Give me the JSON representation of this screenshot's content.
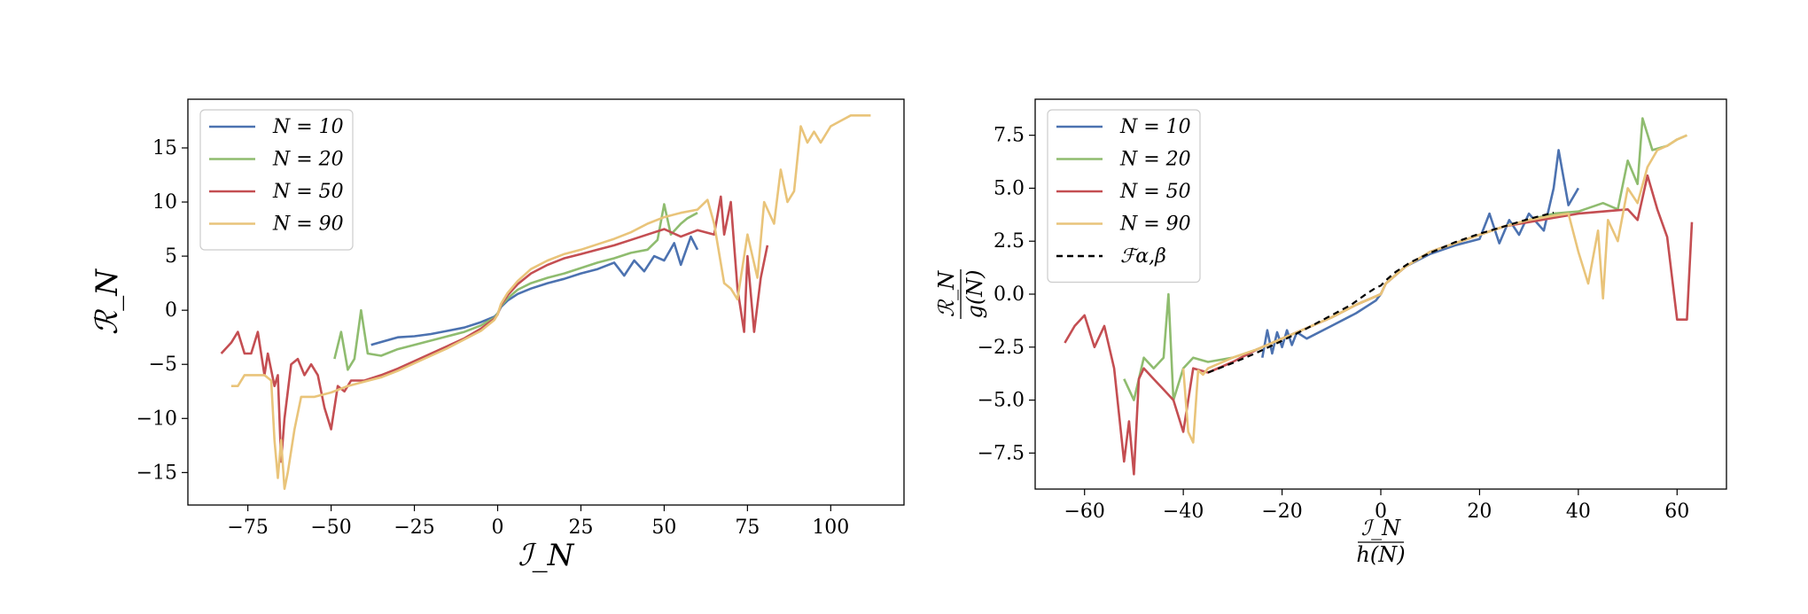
{
  "chart_data": [
    {
      "type": "line",
      "xlabel": "ℐ_N",
      "ylabel": "ℛ_N",
      "xlim": [
        -93,
        122
      ],
      "ylim": [
        -18,
        19.5
      ],
      "xticks": [
        -75,
        -50,
        -25,
        0,
        25,
        50,
        75,
        100
      ],
      "xtick_labels": [
        "−75",
        "−50",
        "−25",
        "0",
        "25",
        "50",
        "75",
        "100"
      ],
      "yticks": [
        -15,
        -10,
        -5,
        0,
        5,
        10,
        15
      ],
      "ytick_labels": [
        "−15",
        "−10",
        "−5",
        "0",
        "5",
        "10",
        "15"
      ],
      "legend_position": "upper-left",
      "series": [
        {
          "name": "N = 10",
          "color": "#4c72b0",
          "x": [
            -38,
            -30,
            -25,
            -20,
            -15,
            -10,
            -5,
            -1,
            0,
            1,
            3,
            6,
            10,
            15,
            20,
            25,
            30,
            35,
            38,
            41,
            44,
            47,
            50,
            53,
            55,
            58,
            60
          ],
          "y": [
            -3.2,
            -2.5,
            -2.4,
            -2.2,
            -1.9,
            -1.6,
            -1.1,
            -0.6,
            -0.3,
            0.3,
            0.9,
            1.5,
            2.0,
            2.5,
            2.9,
            3.4,
            3.8,
            4.4,
            3.2,
            4.6,
            3.6,
            5.0,
            4.6,
            6.2,
            4.2,
            6.8,
            5.6
          ]
        },
        {
          "name": "N = 20",
          "color": "#8fbc6f",
          "x": [
            -49,
            -47,
            -45,
            -43,
            -41,
            -39,
            -35,
            -30,
            -25,
            -20,
            -15,
            -10,
            -5,
            -1,
            0,
            1,
            3,
            6,
            10,
            15,
            20,
            25,
            30,
            35,
            40,
            45,
            48,
            50,
            52,
            55,
            57,
            60
          ],
          "y": [
            -4.5,
            -2,
            -5.5,
            -4.5,
            0,
            -4,
            -4.2,
            -3.6,
            -3.2,
            -2.8,
            -2.4,
            -2.0,
            -1.4,
            -0.7,
            -0.3,
            0.4,
            1.1,
            1.9,
            2.5,
            3.0,
            3.4,
            3.9,
            4.4,
            4.8,
            5.3,
            5.6,
            6.5,
            9.8,
            7.0,
            8.0,
            8.5,
            9.0
          ]
        },
        {
          "name": "N = 50",
          "color": "#c44e52",
          "x": [
            -83,
            -80,
            -78,
            -76,
            -74,
            -72,
            -70,
            -69,
            -67,
            -66,
            -65,
            -64,
            -62,
            -60,
            -58,
            -56,
            -54,
            -52,
            -50,
            -48,
            -46,
            -44,
            -40,
            -35,
            -30,
            -25,
            -20,
            -15,
            -10,
            -5,
            -1,
            0,
            1,
            3,
            6,
            10,
            15,
            20,
            25,
            30,
            35,
            40,
            45,
            50,
            55,
            60,
            65,
            67,
            68,
            70,
            72,
            74,
            75,
            77,
            79,
            81
          ],
          "y": [
            -4,
            -3,
            -2,
            -4,
            -4,
            -2,
            -6,
            -4,
            -7,
            -6,
            -14,
            -10,
            -5,
            -4.5,
            -6,
            -5,
            -6,
            -9,
            -11,
            -7,
            -7.5,
            -6.5,
            -6.5,
            -6,
            -5.4,
            -4.7,
            -4.0,
            -3.3,
            -2.6,
            -1.7,
            -0.8,
            -0.4,
            0.5,
            1.4,
            2.4,
            3.4,
            4.2,
            4.8,
            5.2,
            5.6,
            6.0,
            6.5,
            7.0,
            7.5,
            6.8,
            7.4,
            7.0,
            10.5,
            7.0,
            10.0,
            2.0,
            -2.0,
            5.0,
            -2.0,
            3.0,
            6.0
          ]
        },
        {
          "name": "N = 90",
          "color": "#e9c47a",
          "x": [
            -80,
            -78,
            -76,
            -74,
            -72,
            -70,
            -68,
            -67,
            -66,
            -65,
            -64,
            -63,
            -61,
            -59,
            -55,
            -50,
            -45,
            -40,
            -35,
            -30,
            -25,
            -20,
            -15,
            -10,
            -5,
            -1,
            0,
            1,
            3,
            6,
            10,
            15,
            20,
            25,
            30,
            35,
            40,
            45,
            50,
            55,
            60,
            63,
            65,
            68,
            70,
            72,
            75,
            78,
            80,
            83,
            85,
            87,
            89,
            91,
            93,
            95,
            97,
            100,
            103,
            106,
            109,
            112
          ],
          "y": [
            -7,
            -7,
            -6,
            -6,
            -6,
            -6,
            -6.5,
            -12,
            -15.5,
            -12,
            -16.5,
            -15,
            -11,
            -8,
            -8,
            -7.6,
            -7,
            -6.6,
            -6.2,
            -5.6,
            -4.9,
            -4.2,
            -3.5,
            -2.7,
            -1.9,
            -0.9,
            -0.4,
            0.6,
            1.6,
            2.7,
            3.8,
            4.6,
            5.2,
            5.6,
            6.1,
            6.6,
            7.2,
            8.0,
            8.6,
            9.0,
            9.3,
            10.2,
            8.0,
            2.5,
            2.0,
            1.0,
            7.0,
            3.0,
            10.0,
            8.0,
            13.0,
            10.0,
            11.0,
            17.0,
            15.5,
            16.5,
            15.5,
            17.0,
            17.5,
            18.0,
            18.0,
            18.0
          ]
        }
      ]
    },
    {
      "type": "line",
      "xlabel": "ℐ_N / h(N)",
      "ylabel": "ℛ_N / g(N)",
      "xlim": [
        -70,
        70
      ],
      "ylim": [
        -9.2,
        9.2
      ],
      "xticks": [
        -60,
        -40,
        -20,
        0,
        20,
        40,
        60
      ],
      "xtick_labels": [
        "−60",
        "−40",
        "−20",
        "0",
        "20",
        "40",
        "60"
      ],
      "yticks": [
        -7.5,
        -5.0,
        -2.5,
        0.0,
        2.5,
        5.0,
        7.5
      ],
      "ytick_labels": [
        "−7.5",
        "−5.0",
        "−2.5",
        "0.0",
        "2.5",
        "5.0",
        "7.5"
      ],
      "legend_position": "upper-left",
      "series": [
        {
          "name": "N = 10",
          "color": "#4c72b0",
          "x": [
            -24,
            -23,
            -22,
            -21,
            -20,
            -19,
            -18,
            -17,
            -15,
            -10,
            -5,
            -1,
            0,
            1,
            5,
            10,
            15,
            20,
            22,
            24,
            26,
            28,
            30,
            33,
            35,
            36,
            38,
            40
          ],
          "y": [
            -3.0,
            -1.7,
            -2.8,
            -1.8,
            -2.5,
            -1.7,
            -2.4,
            -1.8,
            -2.1,
            -1.5,
            -0.9,
            -0.3,
            0.0,
            0.5,
            1.3,
            1.9,
            2.3,
            2.6,
            3.8,
            2.4,
            3.5,
            2.8,
            3.8,
            3.0,
            5.0,
            6.8,
            4.2,
            5.0
          ]
        },
        {
          "name": "N = 20",
          "color": "#8fbc6f",
          "x": [
            -52,
            -50,
            -48,
            -46,
            -44,
            -43,
            -42,
            -40,
            -38,
            -35,
            -30,
            -25,
            -20,
            -15,
            -10,
            -5,
            -1,
            0,
            1,
            5,
            10,
            15,
            20,
            25,
            30,
            35,
            40,
            45,
            48,
            50,
            52,
            53,
            55,
            58,
            60,
            62
          ],
          "y": [
            -4.0,
            -5.0,
            -3.0,
            -3.5,
            -3.0,
            0.0,
            -5.0,
            -3.5,
            -3.0,
            -3.2,
            -3.0,
            -2.6,
            -2.1,
            -1.6,
            -1.1,
            -0.5,
            -0.1,
            0.0,
            0.5,
            1.3,
            2.0,
            2.4,
            2.8,
            3.2,
            3.5,
            3.8,
            3.9,
            4.3,
            4.0,
            6.3,
            5.2,
            8.3,
            6.8,
            7.0,
            7.3,
            7.5
          ]
        },
        {
          "name": "N = 50",
          "color": "#c44e52",
          "x": [
            -64,
            -62,
            -60,
            -58,
            -56,
            -54,
            -52,
            -51,
            -50,
            -49,
            -48,
            -46,
            -44,
            -42,
            -40,
            -38,
            -35,
            -30,
            -25,
            -20,
            -15,
            -10,
            -5,
            -1,
            0,
            1,
            5,
            10,
            15,
            20,
            25,
            30,
            35,
            40,
            45,
            50,
            52,
            54,
            56,
            58,
            60,
            62,
            63
          ],
          "y": [
            -2.3,
            -1.5,
            -1.0,
            -2.5,
            -1.5,
            -3.5,
            -7.9,
            -6.0,
            -8.5,
            -4.0,
            -3.5,
            -4.0,
            -4.5,
            -5.0,
            -6.5,
            -3.5,
            -3.7,
            -3.2,
            -2.6,
            -2.1,
            -1.6,
            -1.1,
            -0.5,
            -0.1,
            0.0,
            0.5,
            1.3,
            2.0,
            2.4,
            2.8,
            3.2,
            3.4,
            3.6,
            3.8,
            3.9,
            4.0,
            3.5,
            5.6,
            4.0,
            2.7,
            -1.2,
            -1.2,
            3.4
          ]
        },
        {
          "name": "N = 90",
          "color": "#e9c47a",
          "x": [
            -40,
            -39,
            -38,
            -37,
            -36,
            -35,
            -33,
            -30,
            -25,
            -20,
            -15,
            -10,
            -5,
            -1,
            0,
            1,
            5,
            10,
            15,
            20,
            25,
            30,
            35,
            38,
            40,
            42,
            44,
            45,
            46,
            48,
            50,
            52,
            54,
            56,
            58,
            60,
            62
          ],
          "y": [
            -3.5,
            -6.5,
            -7.0,
            -3.6,
            -3.8,
            -3.5,
            -3.3,
            -3.0,
            -2.6,
            -2.1,
            -1.6,
            -1.1,
            -0.5,
            -0.1,
            0.0,
            0.5,
            1.3,
            2.0,
            2.4,
            2.8,
            3.2,
            3.5,
            3.7,
            3.8,
            2.0,
            0.5,
            3.0,
            -0.2,
            3.5,
            2.5,
            5.0,
            4.3,
            6.0,
            6.8,
            7.0,
            7.3,
            7.5
          ]
        },
        {
          "name": "ℱα,β",
          "color": "#000000",
          "dashed": true,
          "x": [
            -35,
            -30,
            -25,
            -20,
            -15,
            -10,
            -6,
            -3,
            -1,
            0,
            1,
            3,
            6,
            10,
            15,
            20,
            25,
            30,
            35
          ],
          "y": [
            -3.7,
            -3.25,
            -2.75,
            -2.2,
            -1.62,
            -1.0,
            -0.5,
            0.0,
            0.3,
            0.4,
            0.65,
            1.05,
            1.5,
            1.95,
            2.45,
            2.85,
            3.2,
            3.55,
            3.85
          ]
        }
      ]
    }
  ]
}
